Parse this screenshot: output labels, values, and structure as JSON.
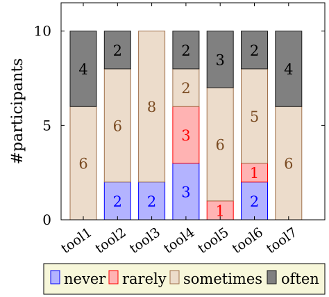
{
  "chart_data": {
    "type": "bar",
    "stacked": true,
    "title": "",
    "xlabel": "",
    "ylabel": "#participants",
    "ylim": [
      0,
      11.5
    ],
    "yticks": [
      0,
      5,
      10
    ],
    "grid": false,
    "legend_position": "bottom",
    "categories": [
      "tool1",
      "tool2",
      "tool3",
      "tool4",
      "tool5",
      "tool6",
      "tool7"
    ],
    "series": [
      {
        "name": "never",
        "values": [
          0,
          2,
          2,
          3,
          0,
          2,
          0
        ],
        "fill": "#b3b3ff",
        "stroke": "#0000ff",
        "label_color": "#0000ff"
      },
      {
        "name": "rarely",
        "values": [
          0,
          0,
          0,
          3,
          1,
          1,
          0
        ],
        "fill": "#ffb3b3",
        "stroke": "#ff0000",
        "label_color": "#ff0000"
      },
      {
        "name": "sometimes",
        "values": [
          6,
          6,
          8,
          2,
          6,
          5,
          6
        ],
        "fill": "#ecdccb",
        "stroke": "#a0714c",
        "label_color": "#7a4b22"
      },
      {
        "name": "often",
        "values": [
          4,
          2,
          0,
          2,
          3,
          2,
          4
        ],
        "fill": "#808080",
        "stroke": "#1a1a1a",
        "label_color": "#000000"
      }
    ],
    "legend_background": "#f7f7da"
  }
}
